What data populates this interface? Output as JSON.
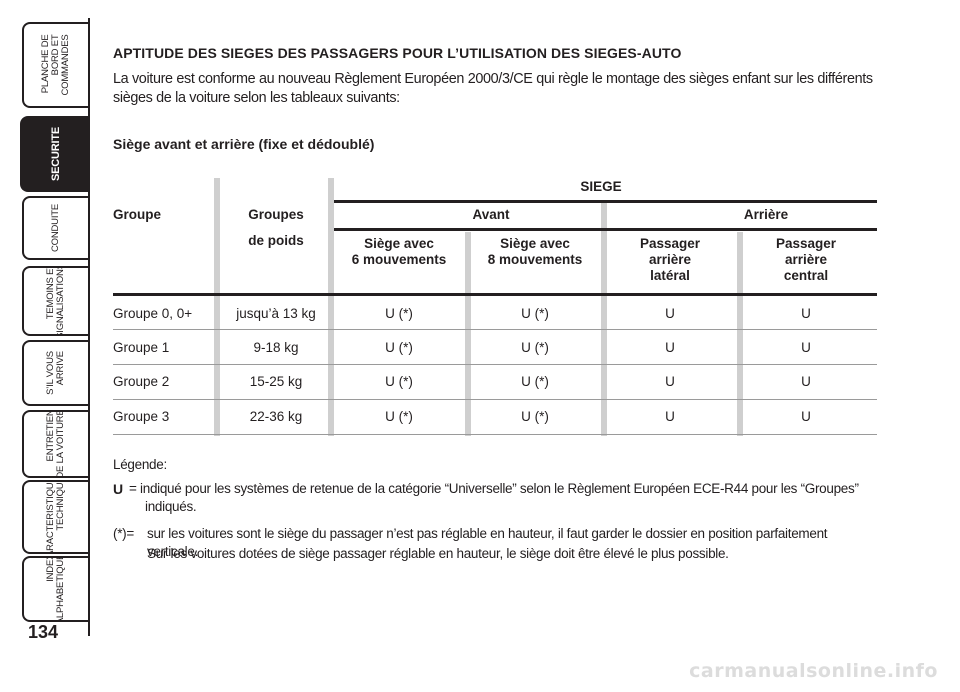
{
  "sidebar": {
    "tabs": [
      {
        "label": "PLANCHE DE\nBORD ET\nCOMMANDES",
        "active": false
      },
      {
        "label": "SECURITE",
        "active": true
      },
      {
        "label": "CONDUITE",
        "active": false
      },
      {
        "label": "TEMOINS ET\nSIGNALISATIONS",
        "active": false
      },
      {
        "label": "S’IL VOUS\nARRIVE",
        "active": false
      },
      {
        "label": "ENTRETIEN\nDE LA VOITURE",
        "active": false
      },
      {
        "label": "CARACTERISTIQUES\nTECHNIQUES",
        "active": false
      },
      {
        "label": "INDEX\nALPHABETIQUE",
        "active": false
      }
    ],
    "page_number": "134"
  },
  "title": "APTITUDE DES SIEGES DES PASSAGERS POUR L’UTILISATION DES SIEGES-AUTO",
  "intro": "La voiture est conforme au nouveau Règlement Européen 2000/3/CE qui règle le montage des sièges enfant sur les différents sièges de la voiture selon les tableaux suivants:",
  "subtitle": "Siège avant et arrière (fixe et dédoublé)",
  "table": {
    "col_groupe": "Groupe",
    "col_groupes_poids_1": "Groupes",
    "col_groupes_poids_2": "de poids",
    "siege": "SIEGE",
    "avant": "Avant",
    "arriere": "Arrière",
    "sub1": "Siège avec\n6 mouvements",
    "sub2": "Siège avec\n8 mouvements",
    "sub3": "Passager\narrière\nlatéral",
    "sub4": "Passager\narrière\ncentral",
    "rows": [
      {
        "groupe": "Groupe 0, 0+",
        "poids": "jusqu’à 13 kg",
        "s6": "U (*)",
        "s8": "U (*)",
        "lat": "U",
        "cen": "U"
      },
      {
        "groupe": "Groupe 1",
        "poids": "9-18 kg",
        "s6": "U (*)",
        "s8": "U (*)",
        "lat": "U",
        "cen": "U"
      },
      {
        "groupe": "Groupe 2",
        "poids": "15-25 kg",
        "s6": "U (*)",
        "s8": "U (*)",
        "lat": "U",
        "cen": "U"
      },
      {
        "groupe": "Groupe 3",
        "poids": "22-36 kg",
        "s6": "U (*)",
        "s8": "U (*)",
        "lat": "U",
        "cen": "U"
      }
    ]
  },
  "legend": {
    "title": "Légende:",
    "u_key": "U",
    "u_text": "= indiqué pour les systèmes de retenue de la catégorie “Universelle” selon le Règlement Européen ECE-R44 pour les “Groupes” indiqués.",
    "star_key": "(*)=",
    "star_text_1": "sur les voitures sont le siège du passager n’est pas réglable en hauteur, il faut garder le dossier en position parfaitement verticale.",
    "star_text_2": "Sur les voitures dotées de siège passager réglable en hauteur, le siège doit être élevé le plus possible."
  },
  "watermark": "carmanualsonline.info"
}
